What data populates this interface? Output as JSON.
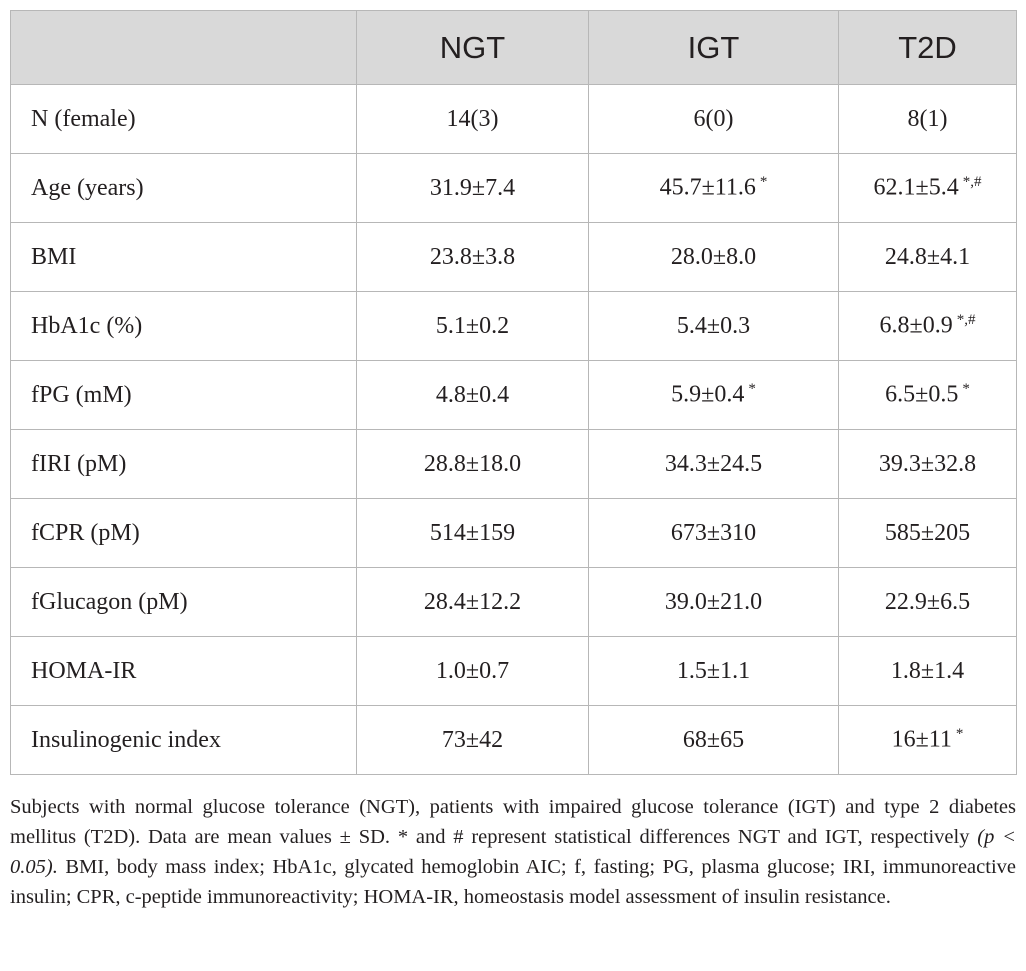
{
  "table": {
    "columns": [
      "",
      "NGT",
      "IGT",
      "T2D"
    ],
    "rows": [
      {
        "label": "N (female)",
        "ngt": "14(3)",
        "ngt_mark": "",
        "igt": "6(0)",
        "igt_mark": "",
        "t2d": "8(1)",
        "t2d_mark": ""
      },
      {
        "label": "Age (years)",
        "ngt": "31.9±7.4",
        "ngt_mark": "",
        "igt": "45.7±11.6",
        "igt_mark": "*",
        "t2d": "62.1±5.4",
        "t2d_mark": "*,#"
      },
      {
        "label": "BMI",
        "ngt": "23.8±3.8",
        "ngt_mark": "",
        "igt": "28.0±8.0",
        "igt_mark": "",
        "t2d": "24.8±4.1",
        "t2d_mark": ""
      },
      {
        "label": "HbA1c (%)",
        "ngt": "5.1±0.2",
        "ngt_mark": "",
        "igt": "5.4±0.3",
        "igt_mark": "",
        "t2d": "6.8±0.9",
        "t2d_mark": "*,#"
      },
      {
        "label": "fPG (mM)",
        "ngt": "4.8±0.4",
        "ngt_mark": "",
        "igt": "5.9±0.4",
        "igt_mark": "*",
        "t2d": "6.5±0.5",
        "t2d_mark": "*"
      },
      {
        "label": "fIRI (pM)",
        "ngt": "28.8±18.0",
        "ngt_mark": "",
        "igt": "34.3±24.5",
        "igt_mark": "",
        "t2d": "39.3±32.8",
        "t2d_mark": ""
      },
      {
        "label": "fCPR (pM)",
        "ngt": "514±159",
        "ngt_mark": "",
        "igt": "673±310",
        "igt_mark": "",
        "t2d": "585±205",
        "t2d_mark": ""
      },
      {
        "label": "fGlucagon (pM)",
        "ngt": "28.4±12.2",
        "ngt_mark": "",
        "igt": "39.0±21.0",
        "igt_mark": "",
        "t2d": "22.9±6.5",
        "t2d_mark": ""
      },
      {
        "label": "HOMA-IR",
        "ngt": "1.0±0.7",
        "ngt_mark": "",
        "igt": "1.5±1.1",
        "igt_mark": "",
        "t2d": "1.8±1.4",
        "t2d_mark": ""
      },
      {
        "label": "Insulinogenic index",
        "ngt": "73±42",
        "ngt_mark": "",
        "igt": "68±65",
        "igt_mark": "",
        "t2d": "16±11",
        "t2d_mark": "*"
      }
    ]
  },
  "footnote": {
    "part1": "Subjects with normal glucose tolerance (NGT), patients with impaired glucose tolerance (IGT) and type 2 diabetes mellitus (T2D). Data are mean values ± SD. * and # represent statistical differences NGT and IGT, respectively ",
    "part2_italic": "(p < 0.05).",
    "part3": " BMI, body mass index; HbA1c, glycated hemoglobin AIC; f, fasting; PG, plasma glucose; IRI, immunoreactive insulin; CPR, c-peptide immunoreactivity; HOMA-IR, homeostasis model assessment of insulin resistance."
  }
}
